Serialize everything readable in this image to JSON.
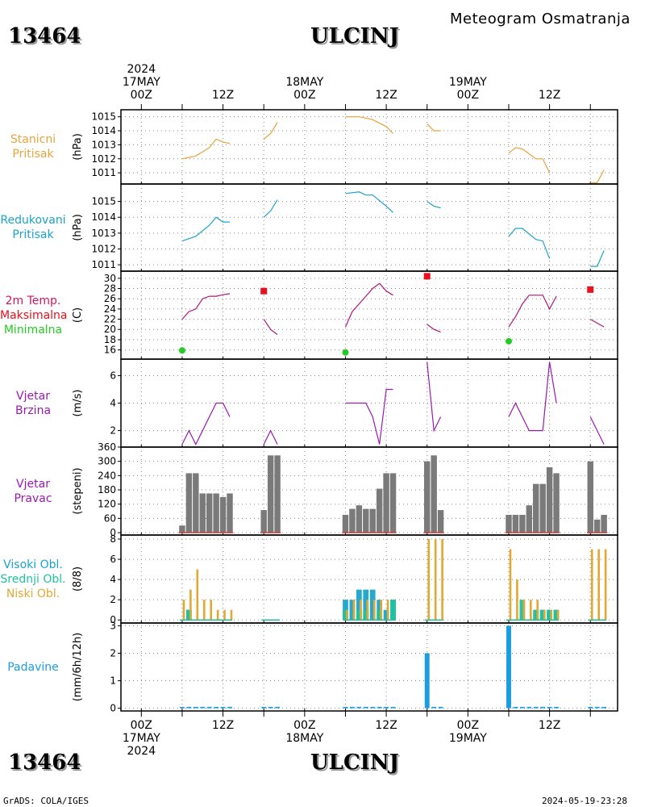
{
  "header": {
    "station_id": "13464",
    "station_name": "ULCINJ",
    "subtitle": "Meteogram Osmatranja"
  },
  "footer": {
    "left": "GrADS: COLA/IGES",
    "right": "2024-05-19-23:28"
  },
  "time_axis": {
    "top_labels": [
      {
        "line1": "2024",
        "line2": "17MAY",
        "line3": "00Z",
        "hour": 0
      },
      {
        "line1": "",
        "line2": "",
        "line3": "12Z",
        "hour": 12
      },
      {
        "line1": "",
        "line2": "18MAY",
        "line3": "00Z",
        "hour": 24
      },
      {
        "line1": "",
        "line2": "",
        "line3": "12Z",
        "hour": 36
      },
      {
        "line1": "",
        "line2": "19MAY",
        "line3": "00Z",
        "hour": 48
      },
      {
        "line1": "",
        "line2": "",
        "line3": "12Z",
        "hour": 60
      }
    ],
    "bottom_labels": [
      {
        "line1": "00Z",
        "line2": "17MAY",
        "line3": "2024",
        "hour": 0
      },
      {
        "line1": "12Z",
        "line2": "",
        "line3": "",
        "hour": 12
      },
      {
        "line1": "00Z",
        "line2": "18MAY",
        "line3": "",
        "hour": 24
      },
      {
        "line1": "12Z",
        "line2": "",
        "line3": "",
        "hour": 36
      },
      {
        "line1": "00Z",
        "line2": "19MAY",
        "line3": "",
        "hour": 48
      },
      {
        "line1": "12Z",
        "line2": "",
        "line3": "",
        "hour": 60
      }
    ],
    "range_hours": [
      -3,
      70
    ]
  },
  "colors": {
    "station_pressure": "#e8a33a",
    "reduced_pressure": "#1aa3cc",
    "temperature": "#b0157a",
    "max_marker": "#e8101a",
    "min_marker": "#22cc22",
    "wind": "#9a1ab0",
    "direction_bar": "#7a7a7a",
    "direction_base": "#d23a3a",
    "high_cloud": "#1aa3cc",
    "mid_cloud": "#1fc2a0",
    "low_cloud": "#e2a832",
    "precip": "#1a9ee0"
  },
  "chart_data": [
    {
      "type": "line",
      "id": "station_pressure",
      "label_lines": [
        "Stanicni",
        "Pritisak"
      ],
      "unit": "(hPa)",
      "ylim": [
        1010.2,
        1015.5
      ],
      "yticks": [
        1011,
        1012,
        1013,
        1014,
        1015
      ],
      "segments": [
        [
          [
            6,
            1012.0
          ],
          [
            8,
            1012.2
          ],
          [
            10,
            1012.8
          ],
          [
            11,
            1013.4
          ],
          [
            12,
            1013.2
          ],
          [
            13,
            1013.1
          ]
        ],
        [
          [
            18,
            1013.4
          ],
          [
            19,
            1013.8
          ],
          [
            20,
            1014.6
          ]
        ],
        [
          [
            30,
            1015.0
          ],
          [
            32,
            1015.0
          ],
          [
            34,
            1014.8
          ],
          [
            36,
            1014.3
          ],
          [
            37,
            1013.8
          ]
        ],
        [
          [
            42,
            1014.5
          ],
          [
            43,
            1014.0
          ],
          [
            44,
            1014.0
          ]
        ],
        [
          [
            54,
            1012.4
          ],
          [
            55,
            1012.8
          ],
          [
            56,
            1012.7
          ],
          [
            58,
            1012.0
          ],
          [
            59,
            1012.0
          ],
          [
            60,
            1011.0
          ]
        ],
        [
          [
            66,
            1010.3
          ],
          [
            67,
            1010.3
          ],
          [
            68,
            1011.2
          ]
        ]
      ]
    },
    {
      "type": "line",
      "id": "reduced_pressure",
      "label_lines": [
        "Redukovani",
        "Pritisak"
      ],
      "unit": "(hPa)",
      "ylim": [
        1010.6,
        1016.1
      ],
      "yticks": [
        1011,
        1012,
        1013,
        1014,
        1015
      ],
      "segments": [
        [
          [
            6,
            1012.5
          ],
          [
            8,
            1012.8
          ],
          [
            10,
            1013.5
          ],
          [
            11,
            1014.0
          ],
          [
            12,
            1013.7
          ],
          [
            13,
            1013.7
          ]
        ],
        [
          [
            18,
            1014.0
          ],
          [
            19,
            1014.4
          ],
          [
            20,
            1015.1
          ]
        ],
        [
          [
            30,
            1015.5
          ],
          [
            32,
            1015.6
          ],
          [
            33,
            1015.4
          ],
          [
            34,
            1015.4
          ],
          [
            36,
            1014.7
          ],
          [
            37,
            1014.3
          ]
        ],
        [
          [
            42,
            1015.0
          ],
          [
            43,
            1014.7
          ],
          [
            44,
            1014.6
          ]
        ],
        [
          [
            54,
            1012.8
          ],
          [
            55,
            1013.3
          ],
          [
            56,
            1013.3
          ],
          [
            58,
            1012.6
          ],
          [
            59,
            1012.5
          ],
          [
            60,
            1011.4
          ]
        ],
        [
          [
            66,
            1010.9
          ],
          [
            67,
            1010.9
          ],
          [
            68,
            1011.9
          ]
        ]
      ]
    },
    {
      "type": "line",
      "id": "temperature",
      "label_lines": [
        "2m Temp.",
        "Maksimalna",
        "Minimalna"
      ],
      "unit": "(C)",
      "ylim": [
        14.2,
        31.4
      ],
      "yticks": [
        16,
        18,
        20,
        22,
        24,
        26,
        28,
        30
      ],
      "segments": [
        [
          [
            6,
            22.0
          ],
          [
            7,
            23.5
          ],
          [
            8,
            24.0
          ],
          [
            9,
            26.0
          ],
          [
            10,
            26.5
          ],
          [
            11,
            26.5
          ],
          [
            12,
            26.8
          ],
          [
            13,
            27.0
          ]
        ],
        [
          [
            18,
            22.0
          ],
          [
            19,
            20.0
          ],
          [
            20,
            19.0
          ]
        ],
        [
          [
            30,
            20.5
          ],
          [
            31,
            23.5
          ],
          [
            33,
            26.5
          ],
          [
            34,
            28.0
          ],
          [
            35,
            29.0
          ],
          [
            36,
            27.5
          ],
          [
            37,
            26.7
          ]
        ],
        [
          [
            42,
            21.0
          ],
          [
            43,
            20.0
          ],
          [
            44,
            19.5
          ]
        ],
        [
          [
            54,
            20.5
          ],
          [
            55,
            22.5
          ],
          [
            56,
            25.0
          ],
          [
            57,
            26.7
          ],
          [
            59,
            26.7
          ],
          [
            60,
            24.0
          ],
          [
            61,
            26.5
          ]
        ],
        [
          [
            66,
            22.0
          ],
          [
            68,
            20.5
          ]
        ]
      ],
      "max_markers": [
        [
          18,
          27.5
        ],
        [
          42,
          30.4
        ],
        [
          66,
          27.8
        ]
      ],
      "min_markers": [
        [
          6,
          15.9
        ],
        [
          30,
          15.5
        ],
        [
          54,
          17.7
        ]
      ]
    },
    {
      "type": "line",
      "id": "wind_speed",
      "label_lines": [
        "Vjetar",
        "Brzina"
      ],
      "unit": "(m/s)",
      "ylim": [
        0.8,
        7.2
      ],
      "yticks": [
        2,
        4,
        6
      ],
      "segments": [
        [
          [
            6,
            1.0
          ],
          [
            7,
            2.0
          ],
          [
            8,
            1.0
          ],
          [
            10,
            3.0
          ],
          [
            11,
            4.0
          ],
          [
            12,
            4.0
          ],
          [
            13,
            3.0
          ]
        ],
        [
          [
            18,
            1.0
          ],
          [
            19,
            2.0
          ],
          [
            20,
            1.0
          ]
        ],
        [
          [
            30,
            4.0
          ],
          [
            33,
            4.0
          ],
          [
            34,
            3.0
          ],
          [
            35,
            1.0
          ],
          [
            36,
            5.0
          ],
          [
            37,
            5.0
          ]
        ],
        [
          [
            42,
            7.0
          ],
          [
            43,
            2.0
          ],
          [
            44,
            3.0
          ]
        ],
        [
          [
            54,
            3.0
          ],
          [
            55,
            4.0
          ],
          [
            57,
            2.0
          ],
          [
            59,
            2.0
          ],
          [
            60,
            7.0
          ],
          [
            61,
            4.0
          ]
        ],
        [
          [
            66,
            3.0
          ],
          [
            68,
            1.0
          ]
        ]
      ]
    },
    {
      "type": "bar",
      "id": "wind_direction",
      "label_lines": [
        "Vjetar",
        "Pravac"
      ],
      "unit": "(stepeni)",
      "ylim": [
        -10,
        360
      ],
      "yticks": [
        0,
        60,
        120,
        180,
        240,
        300,
        360
      ],
      "bars": [
        [
          6,
          30
        ],
        [
          7,
          250
        ],
        [
          8,
          250
        ],
        [
          9,
          165
        ],
        [
          10,
          165
        ],
        [
          11,
          165
        ],
        [
          12,
          150
        ],
        [
          13,
          165
        ],
        [
          18,
          95
        ],
        [
          19,
          325
        ],
        [
          20,
          325
        ],
        [
          30,
          75
        ],
        [
          31,
          100
        ],
        [
          32,
          115
        ],
        [
          33,
          100
        ],
        [
          34,
          100
        ],
        [
          35,
          185
        ],
        [
          36,
          250
        ],
        [
          37,
          250
        ],
        [
          42,
          300
        ],
        [
          43,
          325
        ],
        [
          44,
          95
        ],
        [
          54,
          75
        ],
        [
          55,
          75
        ],
        [
          56,
          75
        ],
        [
          57,
          115
        ],
        [
          58,
          205
        ],
        [
          59,
          205
        ],
        [
          60,
          275
        ],
        [
          61,
          250
        ],
        [
          66,
          300
        ],
        [
          67,
          55
        ],
        [
          68,
          75
        ]
      ]
    },
    {
      "type": "bar",
      "id": "cloud_cover",
      "label_lines": [
        "Visoki Obl.",
        "Srednji Obl.",
        "Niski Obl."
      ],
      "unit": "(8/8)",
      "ylim": [
        -0.3,
        8.4
      ],
      "yticks": [
        0,
        2,
        4,
        6,
        8
      ],
      "series": [
        {
          "name": "Visoki Obl.",
          "values": [
            [
              7,
              1
            ],
            [
              30,
              2
            ],
            [
              31,
              2
            ],
            [
              32,
              3
            ],
            [
              33,
              3
            ],
            [
              34,
              3
            ],
            [
              35,
              2
            ],
            [
              36,
              1
            ],
            [
              37,
              2
            ],
            [
              58,
              1
            ],
            [
              59,
              1
            ],
            [
              60,
              1
            ],
            [
              61,
              1
            ]
          ]
        },
        {
          "name": "Srednji Obl.",
          "values": [
            [
              7,
              1
            ],
            [
              30,
              1
            ],
            [
              32,
              1
            ],
            [
              33,
              1
            ],
            [
              35,
              1
            ],
            [
              37,
              2
            ],
            [
              56,
              2
            ],
            [
              58,
              1
            ],
            [
              59,
              1
            ],
            [
              60,
              1
            ],
            [
              61,
              1
            ]
          ]
        },
        {
          "name": "Niski Obl.",
          "values": [
            [
              6,
              2
            ],
            [
              7,
              3
            ],
            [
              8,
              5
            ],
            [
              9,
              2
            ],
            [
              10,
              2
            ],
            [
              11,
              1
            ],
            [
              12,
              1
            ],
            [
              13,
              1
            ],
            [
              30,
              1
            ],
            [
              31,
              2
            ],
            [
              32,
              2
            ],
            [
              33,
              2
            ],
            [
              34,
              2
            ],
            [
              35,
              2
            ],
            [
              36,
              2
            ],
            [
              42,
              8
            ],
            [
              43,
              8
            ],
            [
              44,
              8
            ],
            [
              54,
              7
            ],
            [
              55,
              4
            ],
            [
              56,
              2
            ],
            [
              57,
              2
            ],
            [
              58,
              2
            ],
            [
              59,
              1
            ],
            [
              60,
              1
            ],
            [
              61,
              1
            ],
            [
              66,
              7
            ],
            [
              67,
              7
            ],
            [
              68,
              7
            ]
          ]
        }
      ]
    },
    {
      "type": "bar",
      "id": "precipitation",
      "label_lines": [
        "Padavine"
      ],
      "unit": "(mm/6h/12h)",
      "ylim": [
        -0.1,
        3.1
      ],
      "yticks": [
        0,
        1,
        2,
        3
      ],
      "bars": [
        [
          6,
          0.05
        ],
        [
          7,
          0.05
        ],
        [
          8,
          0.05
        ],
        [
          9,
          0.05
        ],
        [
          10,
          0.05
        ],
        [
          11,
          0.05
        ],
        [
          12,
          0.05
        ],
        [
          13,
          0.05
        ],
        [
          18,
          0.05
        ],
        [
          19,
          0.05
        ],
        [
          20,
          0.05
        ],
        [
          30,
          0.05
        ],
        [
          31,
          0.05
        ],
        [
          32,
          0.05
        ],
        [
          33,
          0.05
        ],
        [
          34,
          0.05
        ],
        [
          35,
          0.05
        ],
        [
          36,
          0.05
        ],
        [
          37,
          0.05
        ],
        [
          42,
          2.0
        ],
        [
          43,
          0.05
        ],
        [
          44,
          0.05
        ],
        [
          54,
          3.0
        ],
        [
          55,
          0.05
        ],
        [
          56,
          0.05
        ],
        [
          57,
          0.05
        ],
        [
          58,
          0.05
        ],
        [
          59,
          0.05
        ],
        [
          60,
          0.05
        ],
        [
          61,
          0.05
        ],
        [
          66,
          0.05
        ],
        [
          67,
          0.05
        ],
        [
          68,
          0.05
        ]
      ]
    }
  ]
}
